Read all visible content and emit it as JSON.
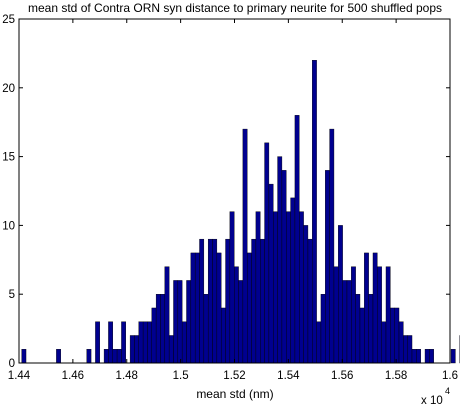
{
  "chart_data": {
    "type": "bar",
    "title": "mean std of Contra ORN syn distance to primary neurite for 500 shuffled pops",
    "xlabel": "mean std (nm)",
    "ylabel": "",
    "x_exponent_label": "x 10",
    "x_exponent_power": "4",
    "xlim": [
      1.44,
      1.6
    ],
    "ylim": [
      0,
      25
    ],
    "x_ticks": [
      "1.44",
      "1.46",
      "1.48",
      "1.5",
      "1.52",
      "1.54",
      "1.56",
      "1.58",
      "1.6"
    ],
    "y_ticks": [
      "0",
      "5",
      "10",
      "15",
      "20",
      "25"
    ],
    "bar_color": "#00008f",
    "bin_start": 1.441,
    "bin_width": 0.00161,
    "values": [
      1,
      0,
      0,
      0,
      0,
      0,
      0,
      0,
      1,
      0,
      0,
      0,
      0,
      0,
      0,
      1,
      0,
      3,
      0,
      1,
      3,
      1,
      1,
      3,
      0,
      2,
      2,
      3,
      3,
      3,
      4,
      5,
      5,
      7,
      2,
      6,
      6,
      3,
      6,
      8,
      8,
      9,
      5,
      9,
      9,
      8,
      4,
      9,
      11,
      7,
      6,
      17,
      8,
      9,
      11,
      9,
      16,
      13,
      11,
      15,
      14,
      11,
      12,
      18,
      11,
      10,
      9,
      22,
      3,
      5,
      14,
      17,
      7,
      10,
      6,
      6,
      7,
      5,
      4,
      8,
      5,
      8,
      7,
      3,
      7,
      4,
      4,
      3,
      2,
      2,
      1,
      1,
      0,
      1,
      1,
      0,
      0,
      0,
      0,
      1,
      0,
      2
    ]
  }
}
